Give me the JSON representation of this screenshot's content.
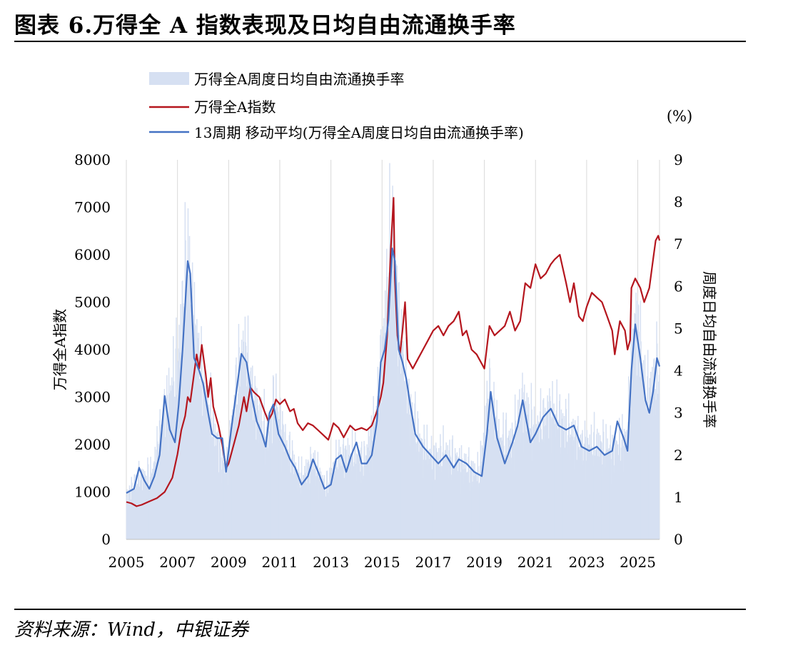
{
  "header": {
    "title": "图表 6.万得全 A 指数表现及日均自由流通换手率"
  },
  "footer": {
    "source": "资料来源：Wind，中银证券"
  },
  "chart_data": {
    "type": "bar+line",
    "colors": {
      "bars": "#d6e0f2",
      "index": "#b5161e",
      "ma": "#4472c4",
      "grid": "#d9d9d9"
    },
    "legend": {
      "placement": "top-left",
      "entries": [
        "万得全A周度日均自由流通换手率",
        "万得全A指数",
        "13周期 移动平均(万得全A周度日均自由流通换手率)"
      ]
    },
    "y_left": {
      "label": "万得全A指数",
      "min": 0,
      "max": 8000,
      "ticks": [
        "0",
        "1000",
        "2000",
        "3000",
        "4000",
        "5000",
        "6000",
        "7000",
        "8000"
      ]
    },
    "y_right": {
      "label": "周度日均自由流通换手率",
      "unit": "(%)",
      "min": 0,
      "max": 9,
      "ticks": [
        "0",
        "1",
        "2",
        "3",
        "4",
        "5",
        "6",
        "7",
        "8",
        "9"
      ]
    },
    "x_axis": {
      "min": 2005,
      "max": 2025.85,
      "ticks": [
        "2005",
        "2007",
        "2009",
        "2011",
        "2013",
        "2015",
        "2017",
        "2019",
        "2021",
        "2023",
        "2025"
      ]
    },
    "series": [
      {
        "name": "万得全A指数",
        "axis": "left",
        "points": [
          [
            2005.0,
            790
          ],
          [
            2005.2,
            760
          ],
          [
            2005.4,
            700
          ],
          [
            2005.6,
            730
          ],
          [
            2005.9,
            800
          ],
          [
            2006.2,
            870
          ],
          [
            2006.5,
            1000
          ],
          [
            2006.8,
            1300
          ],
          [
            2007.0,
            1800
          ],
          [
            2007.15,
            2300
          ],
          [
            2007.3,
            2600
          ],
          [
            2007.4,
            3000
          ],
          [
            2007.5,
            2900
          ],
          [
            2007.6,
            3300
          ],
          [
            2007.75,
            3900
          ],
          [
            2007.85,
            3600
          ],
          [
            2007.95,
            4100
          ],
          [
            2008.1,
            3500
          ],
          [
            2008.2,
            3000
          ],
          [
            2008.3,
            3400
          ],
          [
            2008.4,
            2800
          ],
          [
            2008.5,
            2600
          ],
          [
            2008.6,
            2400
          ],
          [
            2008.75,
            2000
          ],
          [
            2008.9,
            1500
          ],
          [
            2009.0,
            1600
          ],
          [
            2009.2,
            2000
          ],
          [
            2009.4,
            2400
          ],
          [
            2009.6,
            3000
          ],
          [
            2009.7,
            2700
          ],
          [
            2009.85,
            3200
          ],
          [
            2010.0,
            3100
          ],
          [
            2010.2,
            3000
          ],
          [
            2010.4,
            2700
          ],
          [
            2010.55,
            2500
          ],
          [
            2010.7,
            2650
          ],
          [
            2010.85,
            2950
          ],
          [
            2011.0,
            2850
          ],
          [
            2011.2,
            2950
          ],
          [
            2011.4,
            2700
          ],
          [
            2011.55,
            2750
          ],
          [
            2011.7,
            2450
          ],
          [
            2011.9,
            2300
          ],
          [
            2012.1,
            2450
          ],
          [
            2012.3,
            2400
          ],
          [
            2012.5,
            2300
          ],
          [
            2012.7,
            2200
          ],
          [
            2012.9,
            2100
          ],
          [
            2013.1,
            2450
          ],
          [
            2013.3,
            2350
          ],
          [
            2013.5,
            2150
          ],
          [
            2013.75,
            2400
          ],
          [
            2013.95,
            2300
          ],
          [
            2014.2,
            2350
          ],
          [
            2014.4,
            2300
          ],
          [
            2014.6,
            2400
          ],
          [
            2014.8,
            2700
          ],
          [
            2014.95,
            3000
          ],
          [
            2015.05,
            3300
          ],
          [
            2015.2,
            4300
          ],
          [
            2015.35,
            6200
          ],
          [
            2015.45,
            7200
          ],
          [
            2015.5,
            5500
          ],
          [
            2015.6,
            4300
          ],
          [
            2015.7,
            3900
          ],
          [
            2015.8,
            4400
          ],
          [
            2015.9,
            5000
          ],
          [
            2016.0,
            3800
          ],
          [
            2016.2,
            3600
          ],
          [
            2016.4,
            3800
          ],
          [
            2016.6,
            4000
          ],
          [
            2016.8,
            4200
          ],
          [
            2017.0,
            4400
          ],
          [
            2017.2,
            4500
          ],
          [
            2017.4,
            4300
          ],
          [
            2017.6,
            4500
          ],
          [
            2017.8,
            4600
          ],
          [
            2018.0,
            4800
          ],
          [
            2018.15,
            4300
          ],
          [
            2018.3,
            4400
          ],
          [
            2018.5,
            4000
          ],
          [
            2018.7,
            3900
          ],
          [
            2018.9,
            3700
          ],
          [
            2019.0,
            3600
          ],
          [
            2019.2,
            4500
          ],
          [
            2019.4,
            4300
          ],
          [
            2019.6,
            4400
          ],
          [
            2019.8,
            4500
          ],
          [
            2020.0,
            4800
          ],
          [
            2020.2,
            4400
          ],
          [
            2020.4,
            4600
          ],
          [
            2020.6,
            5400
          ],
          [
            2020.8,
            5300
          ],
          [
            2021.0,
            5800
          ],
          [
            2021.2,
            5500
          ],
          [
            2021.4,
            5600
          ],
          [
            2021.6,
            5800
          ],
          [
            2021.75,
            5900
          ],
          [
            2021.95,
            6000
          ],
          [
            2022.2,
            5400
          ],
          [
            2022.35,
            5000
          ],
          [
            2022.5,
            5400
          ],
          [
            2022.7,
            4700
          ],
          [
            2022.85,
            4600
          ],
          [
            2023.0,
            4900
          ],
          [
            2023.2,
            5200
          ],
          [
            2023.4,
            5100
          ],
          [
            2023.6,
            5000
          ],
          [
            2023.8,
            4700
          ],
          [
            2024.0,
            4400
          ],
          [
            2024.1,
            3900
          ],
          [
            2024.3,
            4600
          ],
          [
            2024.5,
            4400
          ],
          [
            2024.6,
            4000
          ],
          [
            2024.7,
            4200
          ],
          [
            2024.75,
            5300
          ],
          [
            2024.9,
            5500
          ],
          [
            2025.1,
            5300
          ],
          [
            2025.25,
            5000
          ],
          [
            2025.45,
            5300
          ],
          [
            2025.6,
            5900
          ],
          [
            2025.7,
            6300
          ],
          [
            2025.8,
            6400
          ],
          [
            2025.85,
            6300
          ]
        ]
      },
      {
        "name": "13周期 移动平均(万得全A周度日均自由流通换手率)",
        "axis": "right",
        "points": [
          [
            2005.0,
            1.1
          ],
          [
            2005.3,
            1.2
          ],
          [
            2005.5,
            1.7
          ],
          [
            2005.7,
            1.4
          ],
          [
            2005.9,
            1.2
          ],
          [
            2006.1,
            1.5
          ],
          [
            2006.3,
            2.0
          ],
          [
            2006.5,
            3.4
          ],
          [
            2006.7,
            2.6
          ],
          [
            2006.9,
            2.3
          ],
          [
            2007.05,
            3.2
          ],
          [
            2007.2,
            4.5
          ],
          [
            2007.4,
            6.6
          ],
          [
            2007.5,
            6.3
          ],
          [
            2007.65,
            4.3
          ],
          [
            2007.85,
            4.0
          ],
          [
            2008.0,
            3.7
          ],
          [
            2008.2,
            3.0
          ],
          [
            2008.35,
            2.5
          ],
          [
            2008.55,
            2.4
          ],
          [
            2008.75,
            2.4
          ],
          [
            2008.9,
            1.6
          ],
          [
            2009.1,
            2.6
          ],
          [
            2009.3,
            3.5
          ],
          [
            2009.5,
            4.4
          ],
          [
            2009.7,
            4.2
          ],
          [
            2009.9,
            3.4
          ],
          [
            2010.1,
            2.8
          ],
          [
            2010.3,
            2.5
          ],
          [
            2010.45,
            2.2
          ],
          [
            2010.6,
            3.0
          ],
          [
            2010.75,
            3.2
          ],
          [
            2010.95,
            2.5
          ],
          [
            2011.2,
            2.2
          ],
          [
            2011.4,
            1.9
          ],
          [
            2011.6,
            1.7
          ],
          [
            2011.85,
            1.3
          ],
          [
            2012.1,
            1.5
          ],
          [
            2012.3,
            1.9
          ],
          [
            2012.5,
            1.6
          ],
          [
            2012.75,
            1.2
          ],
          [
            2013.0,
            1.3
          ],
          [
            2013.2,
            1.9
          ],
          [
            2013.4,
            2.0
          ],
          [
            2013.6,
            1.6
          ],
          [
            2013.8,
            2.0
          ],
          [
            2014.0,
            2.3
          ],
          [
            2014.2,
            1.8
          ],
          [
            2014.4,
            1.8
          ],
          [
            2014.6,
            2.0
          ],
          [
            2014.8,
            2.8
          ],
          [
            2014.95,
            4.2
          ],
          [
            2015.1,
            4.5
          ],
          [
            2015.25,
            5.2
          ],
          [
            2015.4,
            6.9
          ],
          [
            2015.5,
            6.6
          ],
          [
            2015.65,
            4.5
          ],
          [
            2015.8,
            4.2
          ],
          [
            2015.95,
            3.8
          ],
          [
            2016.1,
            3.2
          ],
          [
            2016.3,
            2.5
          ],
          [
            2016.6,
            2.2
          ],
          [
            2016.9,
            2.0
          ],
          [
            2017.2,
            1.8
          ],
          [
            2017.5,
            2.0
          ],
          [
            2017.8,
            1.7
          ],
          [
            2018.0,
            1.9
          ],
          [
            2018.3,
            1.8
          ],
          [
            2018.6,
            1.6
          ],
          [
            2018.9,
            1.5
          ],
          [
            2019.1,
            2.5
          ],
          [
            2019.25,
            3.5
          ],
          [
            2019.5,
            2.4
          ],
          [
            2019.8,
            1.8
          ],
          [
            2020.1,
            2.3
          ],
          [
            2020.3,
            2.7
          ],
          [
            2020.5,
            3.3
          ],
          [
            2020.8,
            2.3
          ],
          [
            2021.0,
            2.5
          ],
          [
            2021.3,
            2.9
          ],
          [
            2021.6,
            3.1
          ],
          [
            2021.9,
            2.7
          ],
          [
            2022.2,
            2.6
          ],
          [
            2022.5,
            2.7
          ],
          [
            2022.8,
            2.2
          ],
          [
            2023.1,
            2.1
          ],
          [
            2023.4,
            2.2
          ],
          [
            2023.7,
            2.0
          ],
          [
            2024.0,
            2.1
          ],
          [
            2024.2,
            2.8
          ],
          [
            2024.45,
            2.4
          ],
          [
            2024.6,
            2.1
          ],
          [
            2024.75,
            4.0
          ],
          [
            2024.9,
            5.1
          ],
          [
            2025.1,
            4.3
          ],
          [
            2025.3,
            3.3
          ],
          [
            2025.45,
            3.0
          ],
          [
            2025.6,
            3.5
          ],
          [
            2025.75,
            4.3
          ],
          [
            2025.85,
            4.1
          ]
        ]
      }
    ],
    "bars_series": {
      "name": "万得全A周度日均自由流通换手率",
      "axis": "right",
      "shape": [
        [
          2005.0,
          1.0
        ],
        [
          2005.5,
          1.4
        ],
        [
          2006.0,
          1.5
        ],
        [
          2006.5,
          3.0
        ],
        [
          2007.0,
          4.0
        ],
        [
          2007.4,
          6.6
        ],
        [
          2007.6,
          5.2
        ],
        [
          2008.0,
          3.6
        ],
        [
          2008.5,
          2.4
        ],
        [
          2008.9,
          1.5
        ],
        [
          2009.3,
          3.5
        ],
        [
          2009.6,
          4.5
        ],
        [
          2010.0,
          3.2
        ],
        [
          2010.5,
          2.4
        ],
        [
          2010.8,
          3.2
        ],
        [
          2011.2,
          2.3
        ],
        [
          2011.8,
          1.4
        ],
        [
          2012.3,
          1.8
        ],
        [
          2012.8,
          1.2
        ],
        [
          2013.3,
          1.9
        ],
        [
          2013.8,
          2.0
        ],
        [
          2014.3,
          1.8
        ],
        [
          2014.8,
          3.0
        ],
        [
          2015.0,
          4.3
        ],
        [
          2015.3,
          6.4
        ],
        [
          2015.45,
          7.0
        ],
        [
          2015.65,
          5.0
        ],
        [
          2016.0,
          3.3
        ],
        [
          2016.5,
          2.2
        ],
        [
          2017.0,
          1.9
        ],
        [
          2017.5,
          2.0
        ],
        [
          2018.0,
          1.8
        ],
        [
          2018.8,
          1.5
        ],
        [
          2019.2,
          3.5
        ],
        [
          2019.6,
          2.3
        ],
        [
          2020.1,
          2.3
        ],
        [
          2020.5,
          3.2
        ],
        [
          2021.0,
          2.5
        ],
        [
          2021.6,
          3.0
        ],
        [
          2022.2,
          2.6
        ],
        [
          2022.8,
          2.2
        ],
        [
          2023.4,
          2.2
        ],
        [
          2024.0,
          2.1
        ],
        [
          2024.6,
          2.4
        ],
        [
          2024.8,
          4.8
        ],
        [
          2025.0,
          5.0
        ],
        [
          2025.3,
          3.3
        ],
        [
          2025.6,
          3.6
        ],
        [
          2025.85,
          4.0
        ]
      ]
    }
  }
}
